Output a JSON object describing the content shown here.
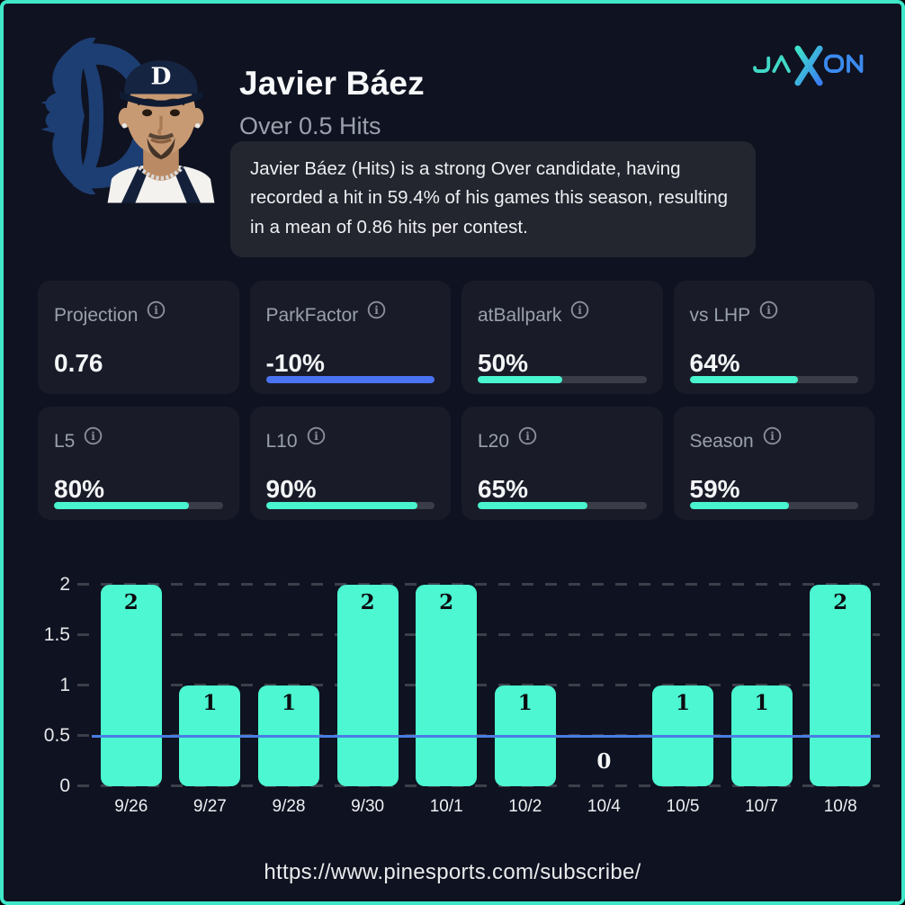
{
  "header": {
    "title": "Javier Báez",
    "subtitle": "Over 0.5 Hits",
    "description": "Javier Báez (Hits) is a strong Over candidate, having recorded a hit in 59.4% of his games this season, resulting in a mean of 0.86 hits per contest.",
    "team_logo": "detroit-tigers-old-english-d",
    "player_photo": "javier-baez-headshot"
  },
  "brand": {
    "name": "JAXON",
    "teal": "#41d9c7",
    "blue": "#3b8bf0"
  },
  "stats": [
    {
      "label": "Projection",
      "value": "0.76",
      "bar": null,
      "bar_color": null
    },
    {
      "label": "ParkFactor",
      "value": "-10%",
      "bar": 100,
      "bar_color": "#4a73f2"
    },
    {
      "label": "atBallpark",
      "value": "50%",
      "bar": 50,
      "bar_color": "#48f5cf"
    },
    {
      "label": "vs LHP",
      "value": "64%",
      "bar": 64,
      "bar_color": "#48f5cf"
    },
    {
      "label": "L5",
      "value": "80%",
      "bar": 80,
      "bar_color": "#48f5cf"
    },
    {
      "label": "L10",
      "value": "90%",
      "bar": 90,
      "bar_color": "#48f5cf"
    },
    {
      "label": "L20",
      "value": "65%",
      "bar": 65,
      "bar_color": "#48f5cf"
    },
    {
      "label": "Season",
      "value": "59%",
      "bar": 59,
      "bar_color": "#48f5cf"
    }
  ],
  "chart_data": {
    "type": "bar",
    "title": "",
    "categories": [
      "9/26",
      "9/27",
      "9/28",
      "9/30",
      "10/1",
      "10/2",
      "10/4",
      "10/5",
      "10/7",
      "10/8"
    ],
    "values": [
      2,
      1,
      1,
      2,
      2,
      1,
      0,
      1,
      1,
      2
    ],
    "xlabel": "",
    "ylabel": "",
    "ylim": [
      0,
      2
    ],
    "y_ticks": [
      0,
      0.5,
      1,
      1.5,
      2
    ],
    "y_tick_labels": [
      "0",
      "0.5",
      "1",
      "1.5",
      "2"
    ],
    "threshold_line": 0.5,
    "bar_color": "#4cf7d1",
    "threshold_color": "#4a7de4",
    "grid": "dashed-horizontal",
    "legend_position": "none"
  },
  "footer": {
    "url": "https://www.pinesports.com/subscribe/"
  }
}
